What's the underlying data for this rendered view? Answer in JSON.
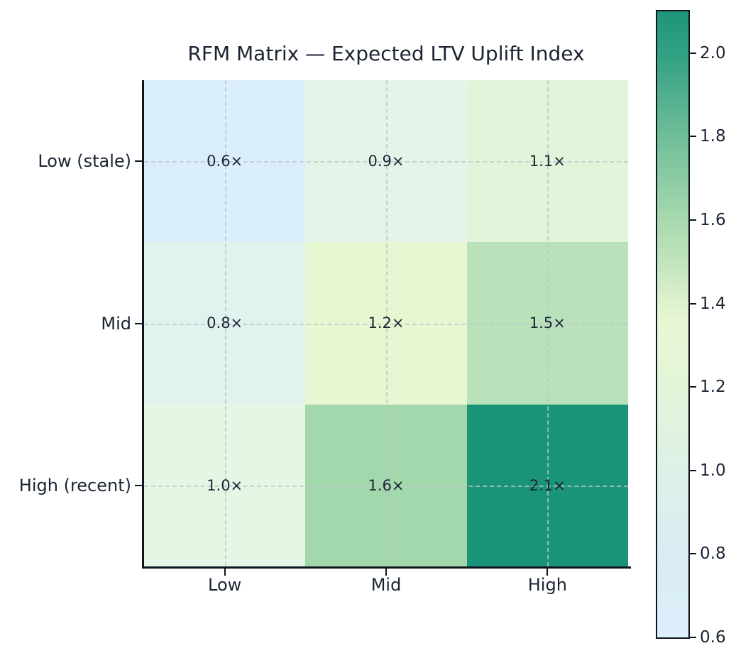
{
  "figure": {
    "background": "#ffffff",
    "text_color": "#1b2433"
  },
  "chart_data": {
    "type": "heatmap",
    "title": "RFM Matrix — Expected LTV Uplift Index",
    "x_categories": [
      "Low",
      "Mid",
      "High"
    ],
    "y_categories": [
      "Low (stale)",
      "Mid",
      "High (recent)"
    ],
    "values": [
      [
        0.6,
        0.9,
        1.1
      ],
      [
        0.8,
        1.2,
        1.5
      ],
      [
        1.0,
        1.6,
        2.1
      ]
    ],
    "cell_labels": [
      [
        "0.6×",
        "0.9×",
        "1.1×"
      ],
      [
        "0.8×",
        "1.2×",
        "1.5×"
      ],
      [
        "1.0×",
        "1.6×",
        "2.1×"
      ]
    ],
    "cell_colors": [
      [
        "#dbeefb",
        "#e3f4e9",
        "#e2f5db"
      ],
      [
        "#e0f3ee",
        "#e7f7d1",
        "#bae2ba"
      ],
      [
        "#e5f6e5",
        "#a3d7ac",
        "#1a9478"
      ]
    ],
    "annotation_color": "#1b2433",
    "grid": "dashed lines at cell centers",
    "legend_position": "right colorbar",
    "colorbar": {
      "vmin": 0.6,
      "vmax": 2.1,
      "tick_values": [
        2.0,
        1.8,
        1.6,
        1.4,
        1.2,
        1.0,
        0.8,
        0.6
      ],
      "tick_labels": [
        "2.0",
        "1.8",
        "1.6",
        "1.4",
        "1.2",
        "1.0",
        "0.8",
        "0.6"
      ],
      "gradient_stops": [
        {
          "offset": 0.0,
          "color": "#dceffb"
        },
        {
          "offset": 0.1333,
          "color": "#d9ecf4"
        },
        {
          "offset": 0.2667,
          "color": "#ddf1e7"
        },
        {
          "offset": 0.4,
          "color": "#e3f5d9"
        },
        {
          "offset": 0.5,
          "color": "#e9f7d4"
        },
        {
          "offset": 0.5333,
          "color": "#dff2ce"
        },
        {
          "offset": 0.6,
          "color": "#c1e4bc"
        },
        {
          "offset": 0.6667,
          "color": "#a8d9af"
        },
        {
          "offset": 0.8,
          "color": "#6fbe99"
        },
        {
          "offset": 0.9333,
          "color": "#31a083"
        },
        {
          "offset": 1.0,
          "color": "#1f9579"
        }
      ]
    }
  }
}
